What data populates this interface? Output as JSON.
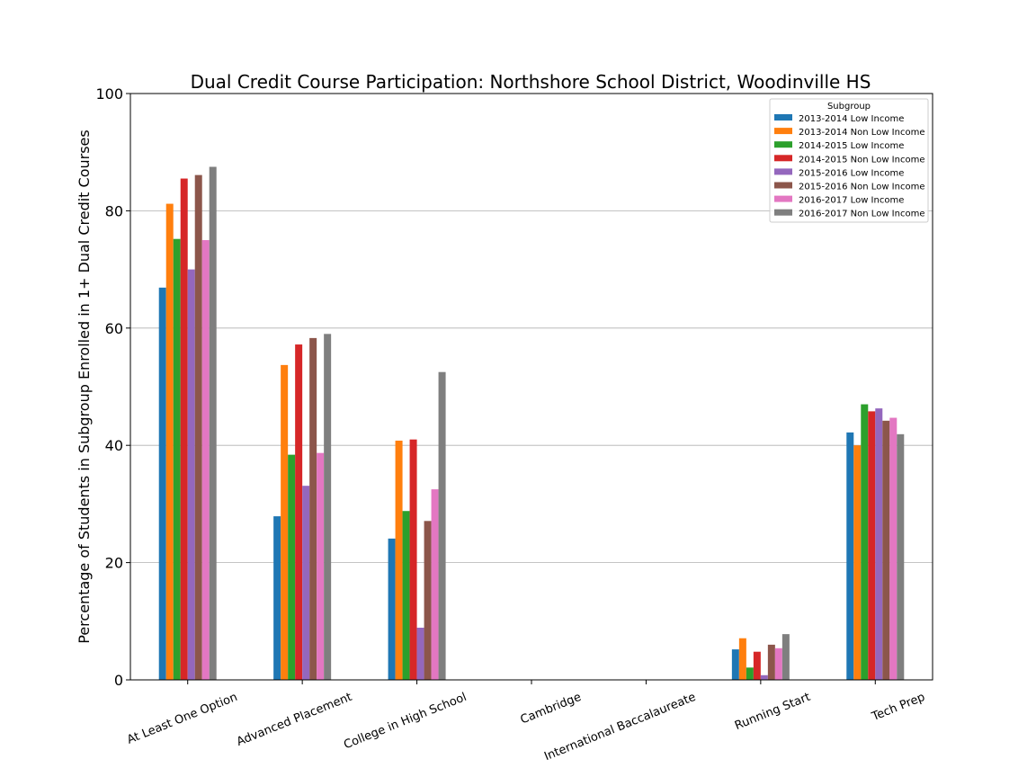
{
  "chart_data": {
    "type": "bar",
    "title": "Dual Credit Course Participation: Northshore School District, Woodinville HS",
    "xlabel": "",
    "ylabel": "Percentage of Students in Subgroup Enrolled in 1+ Dual Credit Courses",
    "ylim": [
      0,
      100
    ],
    "yticks": [
      "0",
      "20",
      "40",
      "60",
      "80",
      "100"
    ],
    "grid": "horizontal",
    "legend_title": "Subgroup",
    "legend_position": "top-right",
    "categories": [
      "At Least One Option",
      "Advanced Placement",
      "College in High School",
      "Cambridge",
      "International Baccalaureate",
      "Running Start",
      "Tech Prep"
    ],
    "series": [
      {
        "name": "2013-2014 Low Income",
        "color": "#1f77b4",
        "values": [
          66.9,
          27.9,
          24.1,
          0,
          0,
          5.2,
          42.2
        ]
      },
      {
        "name": "2013-2014 Non Low Income",
        "color": "#ff7f0e",
        "values": [
          81.2,
          53.7,
          40.8,
          0,
          0,
          7.1,
          40.0
        ]
      },
      {
        "name": "2014-2015 Low Income",
        "color": "#2ca02c",
        "values": [
          75.2,
          38.4,
          28.8,
          0,
          0,
          2.1,
          47.0
        ]
      },
      {
        "name": "2014-2015 Non Low Income",
        "color": "#d62728",
        "values": [
          85.5,
          57.2,
          41.0,
          0,
          0,
          4.8,
          45.8
        ]
      },
      {
        "name": "2015-2016 Low Income",
        "color": "#9467bd",
        "values": [
          70.0,
          33.1,
          8.9,
          0,
          0,
          0.8,
          46.3
        ]
      },
      {
        "name": "2015-2016 Non Low Income",
        "color": "#8c564b",
        "values": [
          86.1,
          58.3,
          27.1,
          0,
          0,
          6.0,
          44.2
        ]
      },
      {
        "name": "2016-2017 Low Income",
        "color": "#e377c2",
        "values": [
          75.0,
          38.7,
          32.5,
          0,
          0,
          5.4,
          44.7
        ]
      },
      {
        "name": "2016-2017 Non Low Income",
        "color": "#7f7f7f",
        "values": [
          87.5,
          59.0,
          52.5,
          0,
          0,
          7.8,
          41.9
        ]
      }
    ]
  }
}
